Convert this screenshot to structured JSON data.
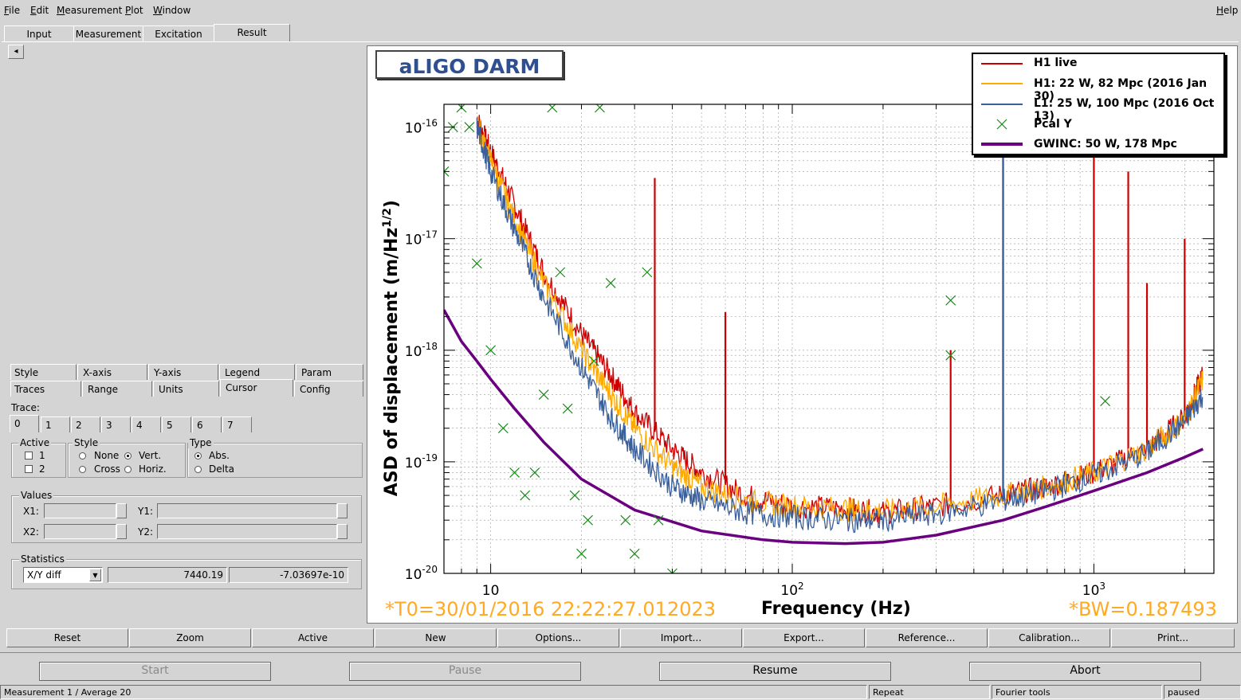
{
  "menu": {
    "file": "File",
    "edit": "Edit",
    "measurement": "Measurement",
    "plot": "Plot",
    "window": "Window",
    "help": "Help"
  },
  "main_tabs": [
    "Input",
    "Measurement",
    "Excitation",
    "Result"
  ],
  "left_panel": {
    "nav_arrow": "◂",
    "option_tabs_row1": [
      "Style",
      "X-axis",
      "Y-axis",
      "Legend",
      "Param"
    ],
    "option_tabs_row2": [
      "Traces",
      "Range",
      "Units",
      "Cursor",
      "Config"
    ],
    "trace_label": "Trace:",
    "trace_tabs": [
      "0",
      "1",
      "2",
      "3",
      "4",
      "5",
      "6",
      "7"
    ],
    "active_label": "Active",
    "active_items": [
      "1",
      "2"
    ],
    "style_label": "Style",
    "style_none": "None",
    "style_vert": "Vert.",
    "style_cross": "Cross",
    "style_horiz": "Horiz.",
    "type_label": "Type",
    "type_abs": "Abs.",
    "type_delta": "Delta",
    "values_label": "Values",
    "x1": "X1:",
    "x2": "X2:",
    "y1": "Y1:",
    "y2": "Y2:",
    "statistics_label": "Statistics",
    "stat_select": "X/Y diff",
    "stat_value1": "7440.19",
    "stat_value2": "-7.03697e-10"
  },
  "plot": {
    "title": "aLIGO DARM",
    "t0": "*T0=30/01/2016 22:22:27.012023",
    "bw": "*BW=0.187493",
    "legend": [
      {
        "name": "H1 live",
        "color": "#cc0000",
        "style": "line"
      },
      {
        "name": "H1: 22 W, 82 Mpc (2016 Jan 30)",
        "color": "#ffaa00",
        "style": "line"
      },
      {
        "name": "L1: 25 W, 100 Mpc (2016 Oct 13)",
        "color": "#3a5f9a",
        "style": "line"
      },
      {
        "name": "Pcal Y",
        "color": "#1a8a1a",
        "style": "marker"
      },
      {
        "name": "GWINC: 50 W, 178 Mpc",
        "color": "#6a0080",
        "style": "thick"
      }
    ]
  },
  "chart_data": {
    "type": "line",
    "title": "aLIGO DARM",
    "xlabel": "Frequency (Hz)",
    "ylabel": "ASD of displacement (m/Hz^1/2)",
    "xscale": "log",
    "yscale": "log",
    "xlim": [
      7,
      2500
    ],
    "ylim": [
      1e-20,
      1.6e-16
    ],
    "x_ticks": [
      "10",
      "10^2",
      "10^3"
    ],
    "y_ticks": [
      "10^-16",
      "10^-17",
      "10^-18",
      "10^-19",
      "10^-20"
    ],
    "grid": true,
    "legend_position": "top-right",
    "series": [
      {
        "name": "GWINC: 50 W, 178 Mpc",
        "x": [
          7,
          8,
          9,
          10,
          12,
          15,
          20,
          30,
          50,
          80,
          100,
          150,
          200,
          300,
          500,
          700,
          1000,
          1500,
          2000,
          2300
        ],
        "y": [
          2.3e-18,
          1.2e-18,
          8e-19,
          5.5e-19,
          3e-19,
          1.5e-19,
          7e-20,
          3.7e-20,
          2.4e-20,
          2e-20,
          1.9e-20,
          1.85e-20,
          1.9e-20,
          2.2e-20,
          3e-20,
          4e-20,
          5.5e-20,
          8e-20,
          1.1e-19,
          1.3e-19
        ]
      },
      {
        "name": "H1 live",
        "x": [
          9,
          10,
          12,
          15,
          20,
          25,
          30,
          40,
          50,
          70,
          100,
          150,
          200,
          300,
          500,
          700,
          1000,
          1500,
          2000,
          2300
        ],
        "y": [
          1.2e-16,
          6e-17,
          2e-17,
          5e-18,
          1.4e-18,
          6e-19,
          2.8e-19,
          1.3e-19,
          8e-20,
          5e-20,
          4e-20,
          3.8e-20,
          3.5e-20,
          4e-20,
          5e-20,
          6e-20,
          8e-20,
          1.3e-19,
          2.5e-19,
          6e-19
        ]
      },
      {
        "name": "H1: 22 W, 82 Mpc (2016 Jan 30)",
        "x": [
          9,
          10,
          12,
          15,
          20,
          25,
          30,
          40,
          50,
          70,
          100,
          150,
          200,
          300,
          500,
          700,
          1000,
          1500,
          2000,
          2300
        ],
        "y": [
          1.1e-16,
          5e-17,
          1.5e-17,
          4e-18,
          1e-18,
          4e-19,
          2e-19,
          9e-20,
          6e-20,
          4.5e-20,
          4e-20,
          3.8e-20,
          3.6e-20,
          4e-20,
          5e-20,
          6e-20,
          8e-20,
          1.3e-19,
          2.4e-19,
          5.5e-19
        ]
      },
      {
        "name": "L1: 25 W, 100 Mpc (2016 Oct 13)",
        "x": [
          9,
          10,
          12,
          15,
          20,
          25,
          30,
          40,
          50,
          70,
          100,
          150,
          200,
          300,
          500,
          700,
          1000,
          1500,
          2000,
          2300
        ],
        "y": [
          1e-16,
          4e-17,
          1.2e-17,
          3e-18,
          7e-19,
          2.5e-19,
          1.3e-19,
          6e-20,
          4.5e-20,
          3.5e-20,
          3.2e-20,
          3e-20,
          3e-20,
          3.4e-20,
          4.5e-20,
          5.5e-20,
          7.5e-20,
          1.2e-19,
          2.3e-19,
          4e-19
        ]
      },
      {
        "name": "Pcal Y",
        "x": [
          7,
          7.5,
          8,
          8.5,
          9,
          10,
          11,
          12,
          13,
          14,
          15,
          16,
          17,
          18,
          19,
          20,
          21,
          22,
          23,
          25,
          28,
          30,
          33,
          36,
          40,
          335,
          335,
          1090
        ],
        "y": [
          4e-17,
          1e-16,
          1.5e-16,
          1e-16,
          6e-18,
          1e-18,
          2e-19,
          8e-20,
          5e-20,
          8e-20,
          4e-19,
          1.5e-16,
          5e-18,
          3e-19,
          5e-20,
          1.5e-20,
          3e-20,
          8e-19,
          1.5e-16,
          4e-18,
          3e-20,
          1.5e-20,
          5e-18,
          3e-20,
          1e-20,
          2.8e-18,
          9e-19,
          3.5e-19
        ]
      }
    ],
    "peaks": {
      "H1 live": [
        [
          35,
          3.5e-17
        ],
        [
          60,
          2.2e-18
        ],
        [
          335,
          1e-18
        ],
        [
          500,
          1.4e-16
        ],
        [
          1000,
          1.4e-16
        ],
        [
          1300,
          4e-17
        ],
        [
          1500,
          4e-18
        ],
        [
          2000,
          1e-17
        ]
      ],
      "L1: 25 W, 100 Mpc (2016 Oct 13)": [
        [
          500,
          1.6e-16
        ]
      ]
    }
  },
  "toolbar": [
    "Reset",
    "Zoom",
    "Active",
    "New",
    "Options...",
    "Import...",
    "Export...",
    "Reference...",
    "Calibration...",
    "Print..."
  ],
  "controls": {
    "start": "Start",
    "pause": "Pause",
    "resume": "Resume",
    "abort": "Abort"
  },
  "statusbar": {
    "measurement": "Measurement 1 / Average 20",
    "repeat": "Repeat",
    "fourier": "Fourier tools",
    "state": "paused"
  },
  "colors": {
    "h1_live": "#cc0000",
    "h1_ref": "#ffaa00",
    "l1_ref": "#3a5f9a",
    "pcal": "#1a8a1a",
    "gwinc": "#6a0080",
    "title_text": "#2f4f8f",
    "annotation": "#ffaa22"
  }
}
